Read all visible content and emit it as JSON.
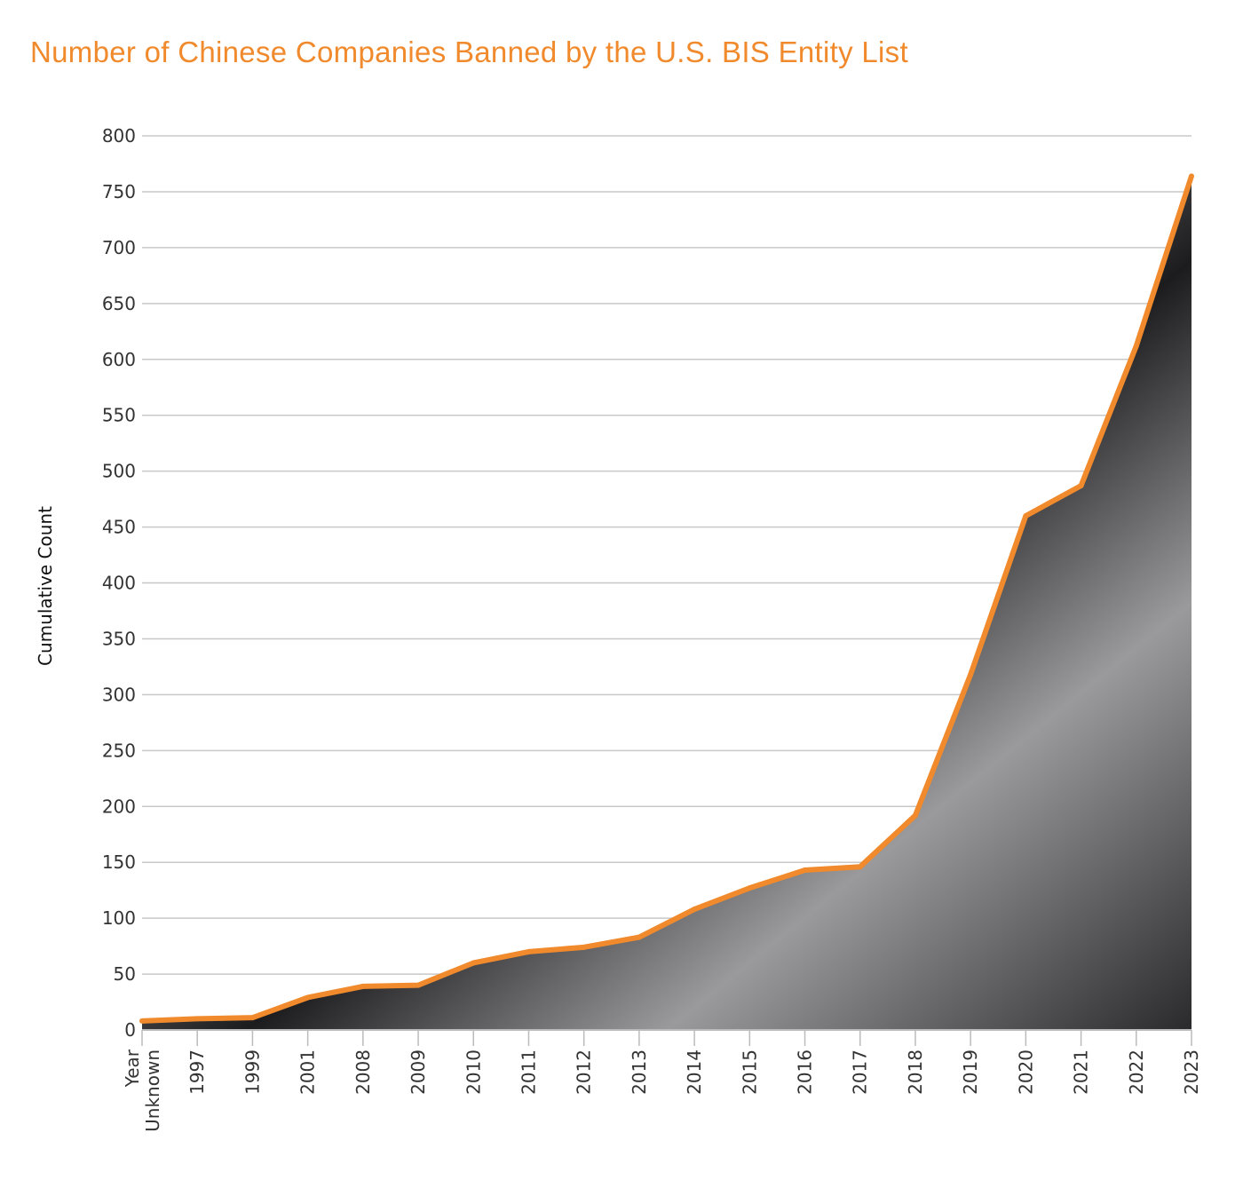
{
  "chart_data": {
    "type": "area",
    "title": "Number of Chinese Companies Banned by the U.S. BIS Entity List",
    "xlabel": "",
    "ylabel": "Cumulative Count",
    "ylim": [
      0,
      800
    ],
    "yticks": [
      0,
      50,
      100,
      150,
      200,
      250,
      300,
      350,
      400,
      450,
      500,
      550,
      600,
      650,
      700,
      750,
      800
    ],
    "grid": true,
    "categories": [
      "Year Unknown",
      "1997",
      "1999",
      "2001",
      "2008",
      "2009",
      "2010",
      "2011",
      "2012",
      "2013",
      "2014",
      "2015",
      "2016",
      "2017",
      "2018",
      "2019",
      "2020",
      "2021",
      "2022",
      "2023"
    ],
    "values": [
      8,
      10,
      11,
      29,
      39,
      40,
      60,
      70,
      74,
      83,
      108,
      127,
      143,
      146,
      192,
      318,
      460,
      487,
      612,
      764
    ],
    "colors": {
      "line": "#f08a2c",
      "title": "#f08a2c",
      "grid": "#c8c8c8",
      "fill": "#6e6e70"
    }
  }
}
